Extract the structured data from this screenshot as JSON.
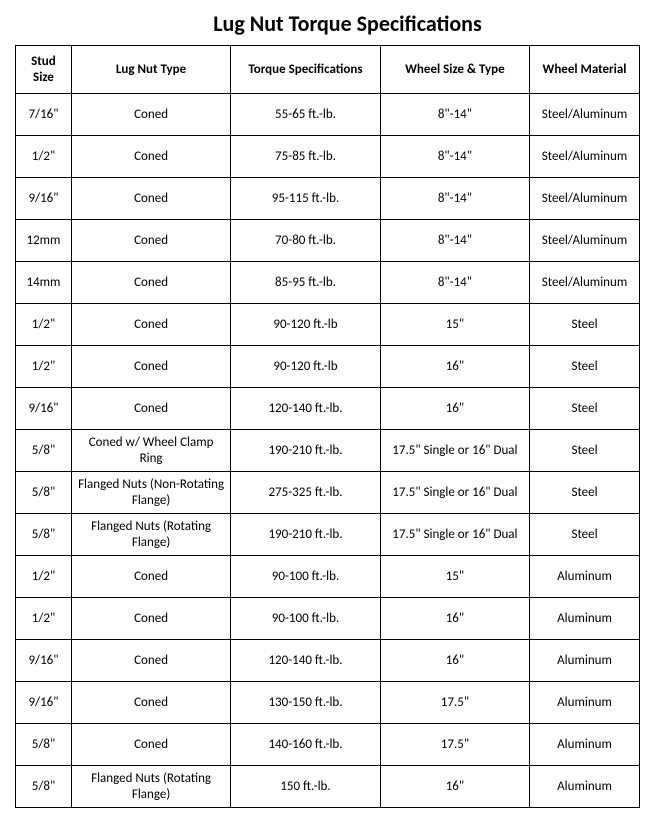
{
  "title": "Lug Nut Torque Specifications",
  "headers": {
    "stud": "Stud Size",
    "type": "Lug Nut Type",
    "torque": "Torque Specifications",
    "wheel": "Wheel Size & Type",
    "material": "Wheel Material"
  },
  "rows": [
    {
      "stud": "7/16\"",
      "type": "Coned",
      "torque": "55-65 ft.-lb.",
      "wheel": "8\"-14\"",
      "material": "Steel/Aluminum"
    },
    {
      "stud": "1/2\"",
      "type": "Coned",
      "torque": "75-85 ft.-lb.",
      "wheel": "8\"-14\"",
      "material": "Steel/Aluminum"
    },
    {
      "stud": "9/16\"",
      "type": "Coned",
      "torque": "95-115 ft.-lb.",
      "wheel": "8\"-14\"",
      "material": "Steel/Aluminum"
    },
    {
      "stud": "12mm",
      "type": "Coned",
      "torque": "70-80 ft.-lb.",
      "wheel": "8\"-14\"",
      "material": "Steel/Aluminum"
    },
    {
      "stud": "14mm",
      "type": "Coned",
      "torque": "85-95 ft.-lb.",
      "wheel": "8\"-14\"",
      "material": "Steel/Aluminum"
    },
    {
      "stud": "1/2\"",
      "type": "Coned",
      "torque": "90-120 ft.-lb",
      "wheel": "15\"",
      "material": "Steel"
    },
    {
      "stud": "1/2\"",
      "type": "Coned",
      "torque": "90-120 ft.-lb",
      "wheel": "16\"",
      "material": "Steel"
    },
    {
      "stud": "9/16\"",
      "type": "Coned",
      "torque": "120-140 ft.-lb.",
      "wheel": "16\"",
      "material": "Steel"
    },
    {
      "stud": "5/8\"",
      "type": "Coned w/ Wheel Clamp Ring",
      "torque": "190-210 ft.-lb.",
      "wheel": "17.5\" Single or 16\" Dual",
      "material": "Steel"
    },
    {
      "stud": "5/8\"",
      "type": "Flanged Nuts (Non-Rotating Flange)",
      "torque": "275-325 ft.-lb.",
      "wheel": "17.5\" Single or 16\" Dual",
      "material": "Steel"
    },
    {
      "stud": "5/8\"",
      "type": "Flanged Nuts (Rotating Flange)",
      "torque": "190-210 ft.-lb.",
      "wheel": "17.5\" Single or 16\" Dual",
      "material": "Steel"
    },
    {
      "stud": "1/2\"",
      "type": "Coned",
      "torque": "90-100 ft.-lb.",
      "wheel": "15\"",
      "material": "Aluminum"
    },
    {
      "stud": "1/2\"",
      "type": "Coned",
      "torque": "90-100 ft.-lb.",
      "wheel": "16\"",
      "material": "Aluminum"
    },
    {
      "stud": "9/16\"",
      "type": "Coned",
      "torque": "120-140 ft.-lb.",
      "wheel": "16\"",
      "material": "Aluminum"
    },
    {
      "stud": "9/16\"",
      "type": "Coned",
      "torque": "130-150 ft.-lb.",
      "wheel": "17.5\"",
      "material": "Aluminum"
    },
    {
      "stud": "5/8\"",
      "type": "Coned",
      "torque": "140-160 ft.-lb.",
      "wheel": "17.5\"",
      "material": "Aluminum"
    },
    {
      "stud": "5/8\"",
      "type": "Flanged Nuts (Rotating Flange)",
      "torque": "150 ft.-lb.",
      "wheel": "16\"",
      "material": "Aluminum"
    }
  ],
  "styling": {
    "title_fontsize": 22,
    "title_fontweight": "bold",
    "body_fontsize": 13,
    "font_family": "Calibri",
    "border_color": "#000000",
    "background_color": "#ffffff",
    "text_color": "#000000",
    "header_row_height": 48,
    "data_row_height": 42,
    "column_widths": {
      "stud": 56,
      "type": 160,
      "torque": 150,
      "wheel": 150,
      "material": 110
    }
  }
}
